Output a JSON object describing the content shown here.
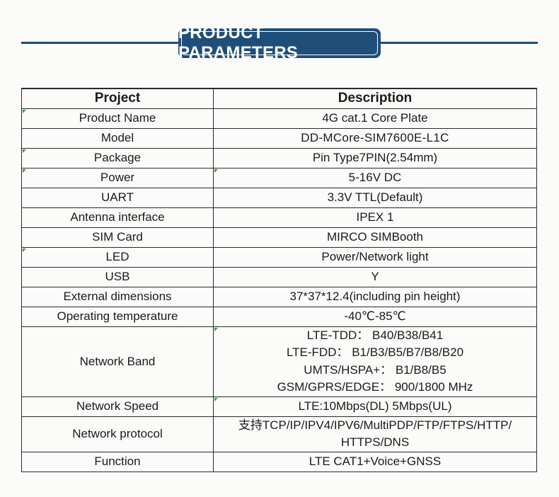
{
  "banner": {
    "title": "PRODUCT PARAMETERS"
  },
  "table": {
    "headers": [
      "Project",
      "Description"
    ],
    "rows": [
      {
        "project": "Product Name",
        "description": "4G cat.1 Core Plate"
      },
      {
        "project": "Model",
        "description": "DD-MCore-SIM7600E-L1C"
      },
      {
        "project": "Package",
        "description": "Pin Type7PIN(2.54mm)"
      },
      {
        "project": "Power",
        "description": "5-16V DC"
      },
      {
        "project": "UART",
        "description": "3.3V TTL(Default)"
      },
      {
        "project": "Antenna interface",
        "description": "IPEX 1"
      },
      {
        "project": "SIM Card",
        "description": "MIRCO SIMBooth"
      },
      {
        "project": "LED",
        "description": "Power/Network light"
      },
      {
        "project": "USB",
        "description": "Y"
      },
      {
        "project": "External dimensions",
        "description": "37*37*12.4(including pin height)"
      },
      {
        "project": "Operating temperature",
        "description": "-40℃-85℃"
      },
      {
        "project": "Network Band",
        "description_lines": [
          "LTE-TDD：  B40/B38/B41",
          "LTE-FDD：  B1/B3/B5/B7/B8/B20",
          "UMTS/HSPA+：  B1/B8/B5",
          "GSM/GPRS/EDGE：  900/1800 MHz"
        ]
      },
      {
        "project": "Network Speed",
        "description": "LTE:10Mbps(DL)  5Mbps(UL)"
      },
      {
        "project": "Network protocol",
        "description_lines": [
          "支持TCP/IP/IPV4/IPV6/MultiPDP/FTP/FTPS/HTTP/",
          "HTTPS/DNS"
        ]
      },
      {
        "project": "Function",
        "description": "LTE  CAT1+Voice+GNSS"
      }
    ]
  },
  "colors": {
    "banner": "#1f4e79",
    "corner_mark": "#3b9a3b",
    "border": "#2a2a2a"
  }
}
